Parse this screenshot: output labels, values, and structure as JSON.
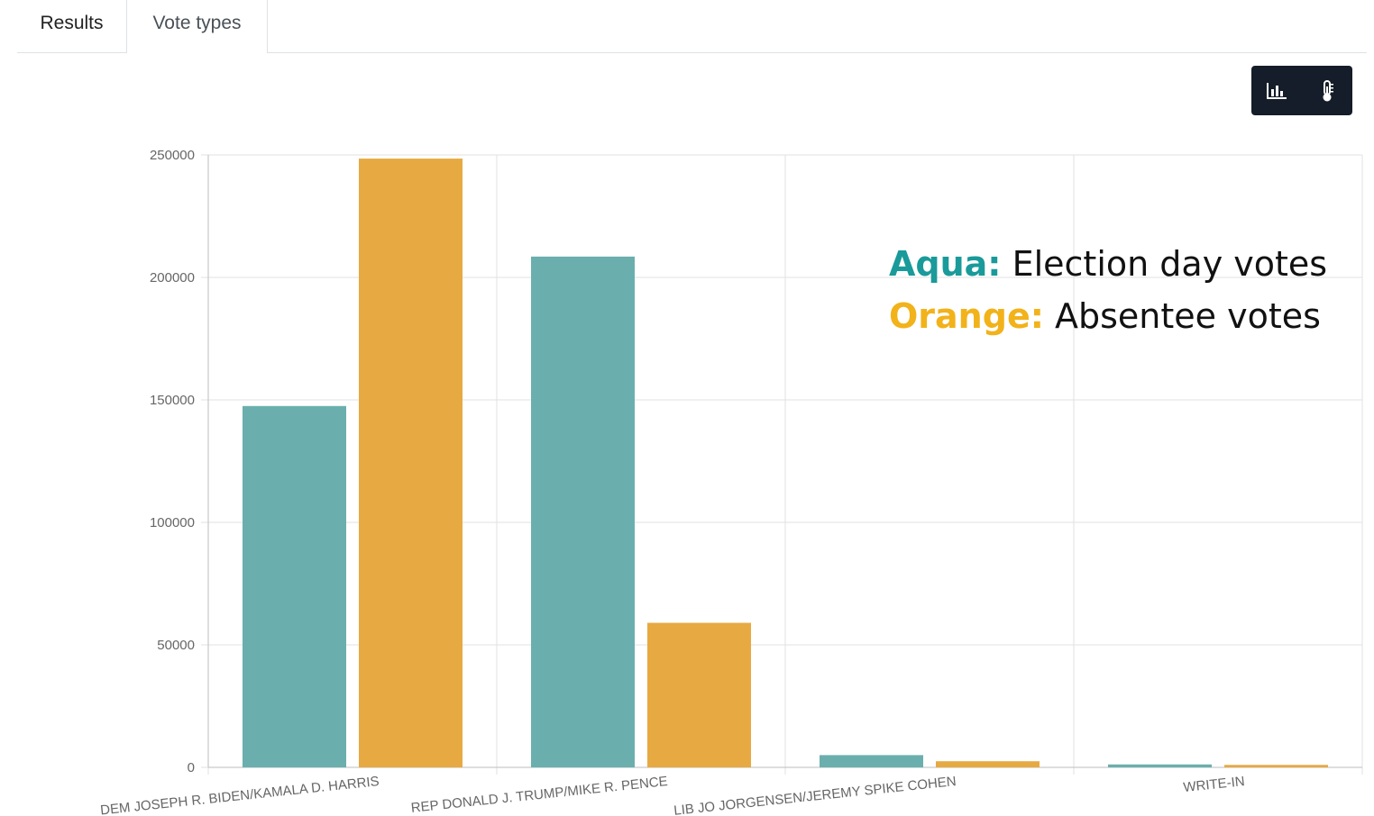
{
  "tabs": [
    {
      "label": "Results"
    },
    {
      "label": "Vote types"
    }
  ],
  "toolbar": {
    "buttons": [
      {
        "icon": "bar-chart-icon"
      },
      {
        "icon": "thermometer-icon"
      }
    ]
  },
  "annotation": {
    "line1_key": "Aqua:",
    "line1_text": " Election day votes",
    "line2_key": "Orange:",
    "line2_text": " Absentee votes",
    "aqua_color": "#1a9a9a",
    "orange_color": "#f2b21a"
  },
  "chart_data": {
    "type": "bar",
    "categories": [
      "DEM JOSEPH R. BIDEN/KAMALA D. HARRIS",
      "REP DONALD J. TRUMP/MIKE R. PENCE",
      "LIB JO JORGENSEN/JEREMY SPIKE COHEN",
      "WRITE-IN"
    ],
    "series": [
      {
        "name": "Election day votes",
        "color": "#6aafad",
        "values": [
          147500,
          208500,
          5000,
          1200
        ]
      },
      {
        "name": "Absentee votes",
        "color": "#e7a942",
        "values": [
          248500,
          59000,
          2500,
          1000
        ]
      }
    ],
    "ylim": [
      0,
      250000
    ],
    "yticks": [
      0,
      50000,
      100000,
      150000,
      200000,
      250000
    ],
    "grid": true,
    "title": "",
    "xlabel": "",
    "ylabel": ""
  }
}
